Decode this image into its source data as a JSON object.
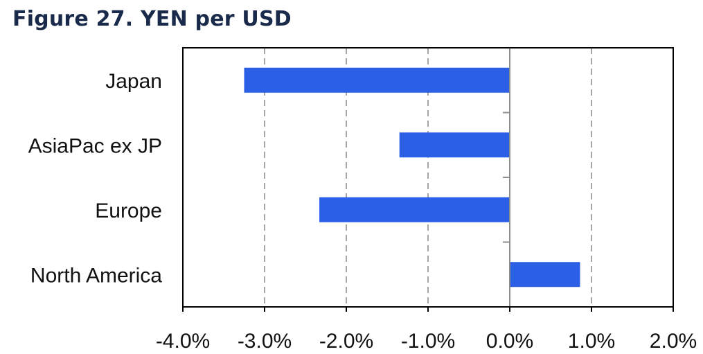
{
  "figure_title": "Figure 27. YEN per USD",
  "chart_data": {
    "type": "bar",
    "orientation": "horizontal",
    "title": "Figure 27. YEN per USD",
    "categories": [
      "Japan",
      "AsiaPac ex JP",
      "Europe",
      "North America"
    ],
    "values": [
      -3.25,
      -1.35,
      -2.33,
      0.86
    ],
    "value_unit": "%",
    "xlim": [
      -4.0,
      2.0
    ],
    "xticks": [
      -4.0,
      -3.0,
      -2.0,
      -1.0,
      0.0,
      1.0,
      2.0
    ],
    "xtick_labels": [
      "-4.0%",
      "-3.0%",
      "-2.0%",
      "-1.0%",
      "0.0%",
      "1.0%",
      "2.0%"
    ],
    "xlabel": "",
    "ylabel": "",
    "grid": "vertical dashed",
    "legend": "none",
    "bar_color": "#2b5fe6"
  }
}
